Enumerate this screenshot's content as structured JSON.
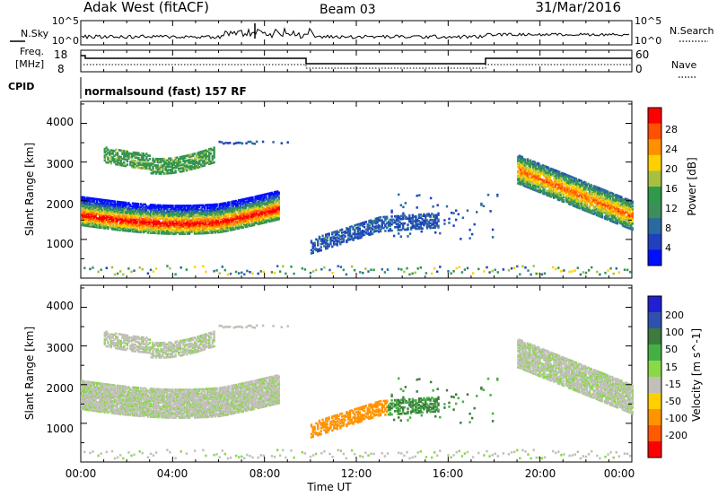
{
  "header": {
    "station": "Adak West (fitACF)",
    "beam": "Beam 03",
    "date": "31/Mar/2016"
  },
  "sky_panel": {
    "left_label": "N.Sky",
    "right_label": "N.Search",
    "ticks_left": [
      "10^5",
      "10^0"
    ],
    "ticks_right": [
      "10^5",
      "10^0"
    ]
  },
  "freq_panel": {
    "label_top": "Freq.",
    "label_unit": "[MHz]",
    "ticks_left": [
      "18",
      "8"
    ],
    "right_label": "Nave",
    "ticks_right": [
      "60",
      "0"
    ]
  },
  "cpid": {
    "label": "CPID",
    "value": "normalsound (fast) 157 RF"
  },
  "power_panel": {
    "ylabel": "Slant Range [km]",
    "yticks": [
      "4000",
      "3000",
      "2000",
      "1000"
    ],
    "cbar_label": "Power [dB]",
    "cbar_ticks": [
      "28",
      "24",
      "20",
      "16",
      "12",
      "8",
      "4"
    ],
    "cbar_colors": [
      "#0010ff",
      "#2040c0",
      "#2a6aa0",
      "#3c8f5a",
      "#2e9a4a",
      "#a8c040",
      "#ffd000",
      "#ff9000",
      "#ff5000",
      "#ff0000"
    ]
  },
  "velocity_panel": {
    "ylabel": "Slant Range [km]",
    "yticks": [
      "4000",
      "3000",
      "2000",
      "1000"
    ],
    "cbar_label": "Velocity [m s^-1]",
    "cbar_ticks": [
      "200",
      "100",
      "50",
      "15",
      "-15",
      "-50",
      "-100",
      "-200"
    ],
    "cbar_colors": [
      "#2020d0",
      "#3050b0",
      "#3d7a3d",
      "#44b044",
      "#8ad848",
      "#c0c0b8",
      "#ffd000",
      "#ff9400",
      "#ff5a00",
      "#ff0000"
    ]
  },
  "x_axis": {
    "ticks": [
      "00:00",
      "04:00",
      "08:00",
      "12:00",
      "16:00",
      "20:00",
      "00:00"
    ],
    "label": "Time UT"
  },
  "chart_data": [
    {
      "type": "heatmap",
      "title": "Power [dB]",
      "xlabel": "Time UT",
      "ylabel": "Slant Range [km]",
      "x_range_hours": [
        0,
        24
      ],
      "ylim": [
        0,
        4500
      ],
      "colorbar": {
        "label": "Power [dB]",
        "ticks": [
          4,
          8,
          12,
          16,
          20,
          24,
          28
        ]
      },
      "echo_regions": [
        {
          "t_start": 0.0,
          "t_end": 8.6,
          "range_start_km": 1450,
          "range_end_km": 2200,
          "peak_power_db": 26
        },
        {
          "t_start": 1.0,
          "t_end": 5.8,
          "range_start_km": 2700,
          "range_end_km": 3400,
          "peak_power_db": 14
        },
        {
          "t_start": 10.0,
          "t_end": 15.5,
          "range_start_km": 700,
          "range_end_km": 1700,
          "peak_power_db": 8
        },
        {
          "t_start": 19.0,
          "t_end": 24.0,
          "range_start_km": 1600,
          "range_end_km": 3100,
          "peak_power_db": 22
        }
      ]
    },
    {
      "type": "heatmap",
      "title": "Velocity [m s^-1]",
      "xlabel": "Time UT",
      "ylabel": "Slant Range [km]",
      "x_range_hours": [
        0,
        24
      ],
      "ylim": [
        0,
        4500
      ],
      "colorbar": {
        "label": "Velocity [m s^-1]",
        "ticks": [
          -200,
          -100,
          -50,
          -15,
          15,
          50,
          100,
          200
        ]
      },
      "echo_regions": [
        {
          "t_start": 0.0,
          "t_end": 8.6,
          "range_start_km": 1450,
          "range_end_km": 2200,
          "typical_velocity": 0
        },
        {
          "t_start": 1.0,
          "t_end": 5.8,
          "range_start_km": 2700,
          "range_end_km": 3400,
          "typical_velocity": 0
        },
        {
          "t_start": 10.0,
          "t_end": 13.3,
          "range_start_km": 700,
          "range_end_km": 1600,
          "typical_velocity": -60
        },
        {
          "t_start": 13.3,
          "t_end": 18.0,
          "range_start_km": 1000,
          "range_end_km": 2200,
          "typical_velocity": 30
        },
        {
          "t_start": 19.0,
          "t_end": 24.0,
          "range_start_km": 1600,
          "range_end_km": 3100,
          "typical_velocity": 0
        }
      ]
    }
  ]
}
